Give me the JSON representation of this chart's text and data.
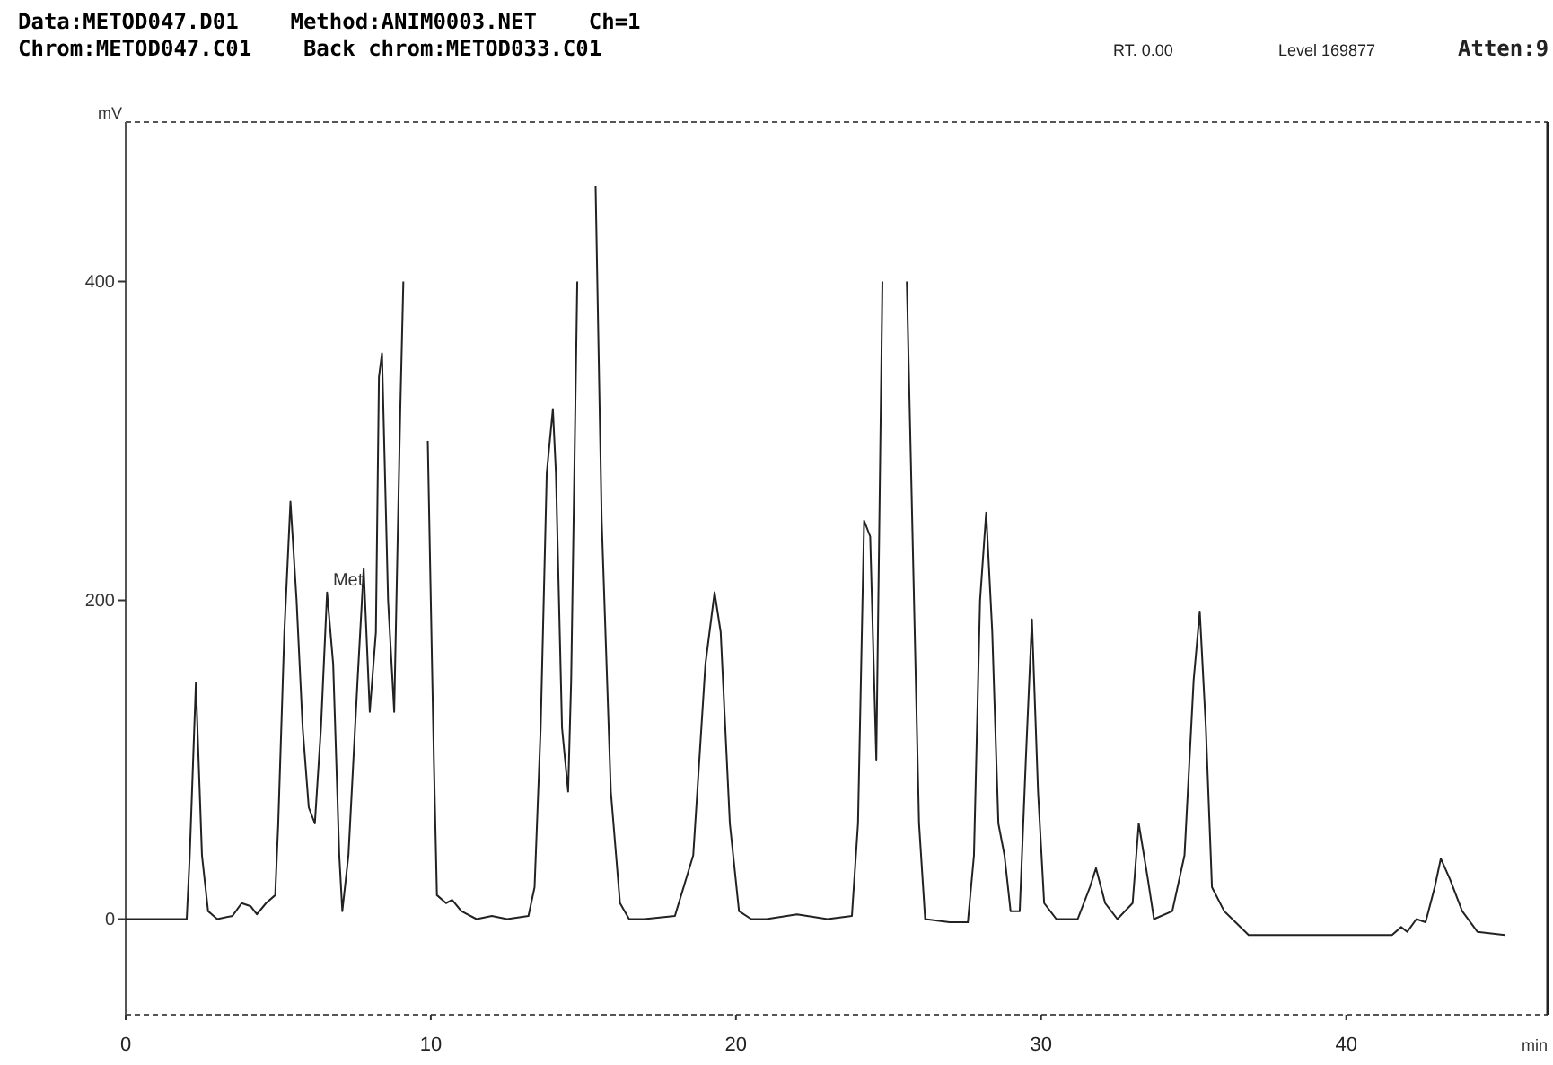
{
  "chart_data": {
    "type": "line",
    "title": "Data:METOD047.D01    Method:ANIM0003.NET    Ch=1",
    "subtitle": "Chrom:METOD047.C01    Back chrom:METOD033.C01",
    "xlabel": "min",
    "ylabel": "mV",
    "annotations": [
      {
        "text": "Met",
        "x": 6.5,
        "y": 207
      },
      "RT. 0.00",
      "Level 169877",
      "Atten:9"
    ],
    "xlim": [
      0,
      46.6
    ],
    "ylim": [
      -60,
      500
    ],
    "xticks": [
      0,
      10,
      20,
      30,
      40
    ],
    "yticks": [
      0,
      200,
      400
    ],
    "grid": false,
    "marker": "none",
    "line_style": "solid",
    "series": [
      {
        "color": "#222222",
        "x": [
          0,
          2.0,
          2.1,
          2.3,
          2.5,
          2.7,
          3.0,
          3.5,
          3.8,
          4.1,
          4.3,
          4.6,
          4.9,
          5.0,
          5.2,
          5.4,
          5.6,
          5.8,
          6.0,
          6.2,
          6.4,
          6.6,
          6.8,
          7.0,
          7.1,
          7.3,
          7.6,
          7.8,
          8.0,
          8.2,
          8.3,
          8.4,
          8.6,
          8.8,
          9.0,
          9.1,
          9.2,
          9.5,
          9.8,
          9.9,
          10.1,
          10.2,
          10.5,
          10.7,
          11,
          11.5,
          12,
          12.5,
          13.2,
          13.4,
          13.6,
          13.8,
          14.0,
          14.1,
          14.3,
          14.5,
          14.6,
          14.8,
          14.9,
          15.3,
          15.4,
          15.6,
          15.9,
          16.2,
          16.5,
          17,
          18.0,
          18.6,
          19.0,
          19.3,
          19.5,
          19.8,
          20.1,
          20.5,
          21,
          22,
          23,
          23.8,
          24.0,
          24.2,
          24.4,
          24.6,
          24.8,
          25.0,
          25.3,
          25.6,
          26.0,
          26.2,
          27.0,
          27.6,
          27.8,
          28.0,
          28.2,
          28.4,
          28.6,
          28.8,
          29.0,
          29.3,
          29.5,
          29.7,
          29.9,
          30.1,
          30.5,
          31.2,
          31.6,
          31.8,
          32.1,
          32.5,
          33.0,
          33.2,
          33.5,
          33.7,
          34.3,
          34.7,
          35.0,
          35.2,
          35.4,
          35.6,
          36,
          36.8,
          37.5,
          41.5,
          41.8,
          42.0,
          42.3,
          42.6,
          42.9,
          43.1,
          43.4,
          43.8,
          44.3,
          45.2
        ],
        "values": [
          0,
          0,
          40,
          148,
          40,
          5,
          0,
          2,
          10,
          8,
          3,
          10,
          15,
          60,
          180,
          262,
          200,
          120,
          70,
          60,
          120,
          205,
          160,
          40,
          5,
          40,
          150,
          220,
          130,
          180,
          340,
          355,
          200,
          130,
          320,
          400,
          null,
          null,
          null,
          300,
          100,
          15,
          10,
          12,
          5,
          0,
          2,
          0,
          2,
          20,
          120,
          280,
          320,
          280,
          120,
          80,
          150,
          400,
          null,
          null,
          460,
          250,
          80,
          10,
          0,
          0,
          2,
          40,
          160,
          205,
          180,
          60,
          5,
          0,
          0,
          3,
          0,
          2,
          60,
          250,
          240,
          100,
          400,
          null,
          null,
          400,
          60,
          0,
          -2,
          -2,
          40,
          200,
          255,
          180,
          60,
          40,
          5,
          5,
          100,
          188,
          80,
          10,
          0,
          0,
          20,
          32,
          10,
          0,
          10,
          60,
          25,
          0,
          5,
          40,
          150,
          193,
          120,
          20,
          5,
          -10,
          -10,
          -10,
          -5,
          -8,
          0,
          -2,
          20,
          38,
          25,
          5,
          -8,
          -10
        ]
      }
    ]
  }
}
